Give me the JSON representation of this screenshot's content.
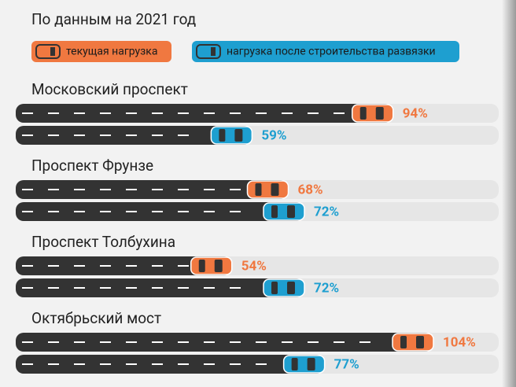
{
  "chart_data": {
    "type": "bar",
    "title": "По данным на 2021 год",
    "categories": [
      "Московский проспект",
      "Проспект Фрунзе",
      "Проспект Толбухина",
      "Октябрьский мост"
    ],
    "series": [
      {
        "name": "текущая нагрузка",
        "color": "#f07840",
        "values": [
          94,
          68,
          54,
          104
        ],
        "value_labels": [
          "94%",
          "68%",
          "54%",
          "104%"
        ]
      },
      {
        "name": "нагрузка после строительства развязки",
        "color": "#1e9fd0",
        "values": [
          59,
          72,
          72,
          77
        ],
        "value_labels": [
          "59%",
          "72%",
          "72%",
          "77%"
        ]
      }
    ]
  }
}
